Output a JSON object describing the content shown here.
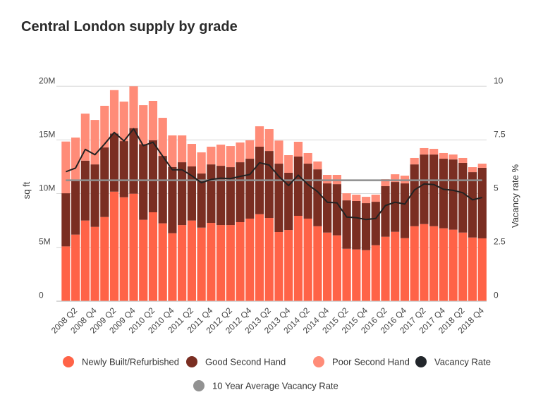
{
  "chart_data": {
    "type": "bar",
    "stacked": true,
    "title": "Central London supply by grade",
    "ylabel": "sq ft",
    "y2label": "Vacancy rate %",
    "ylim": [
      0,
      20000000
    ],
    "y2lim": [
      0,
      10
    ],
    "yticks": [
      "0",
      "5M",
      "10M",
      "15M",
      "20M"
    ],
    "y2ticks": [
      "0",
      "2.5",
      "5",
      "7.5",
      "10"
    ],
    "grid": true,
    "legend_placement": "bottom",
    "xtick_labels": [
      "2008 Q2",
      "2008 Q4",
      "2009 Q2",
      "2009 Q4",
      "2010 Q2",
      "2010 Q4",
      "2011 Q2",
      "2011 Q4",
      "2012 Q2",
      "2012 Q4",
      "2013 Q2",
      "2013 Q4",
      "2014 Q2",
      "2014 Q4",
      "2015 Q2",
      "2015 Q4",
      "2016 Q2",
      "2016 Q4",
      "2017 Q2",
      "2017 Q4",
      "2018 Q2",
      "2018 Q4"
    ],
    "units": "millions sq ft",
    "series": [
      {
        "name": "Newly Built/Refurbished",
        "color": "#ff6347",
        "axis": "left",
        "values": [
          5.08,
          6.18,
          7.49,
          6.9,
          7.82,
          10.18,
          9.66,
          9.99,
          7.56,
          8.26,
          7.23,
          6.31,
          7.07,
          7.49,
          6.83,
          7.27,
          7.07,
          7.07,
          7.34,
          7.67,
          8.08,
          7.73,
          6.42,
          6.61,
          7.93,
          7.67,
          6.96,
          6.37,
          6.11,
          4.86,
          4.8,
          4.73,
          5.19,
          5.98,
          6.44,
          5.85,
          6.96,
          7.16,
          6.96,
          6.77,
          6.64,
          6.37,
          5.91,
          5.83
        ]
      },
      {
        "name": "Good Second Hand",
        "color": "#7a2e22",
        "axis": "left",
        "values": [
          4.95,
          4.97,
          5.58,
          5.82,
          6.48,
          5.42,
          5.23,
          6.11,
          7.05,
          6.7,
          6.28,
          6.17,
          5.85,
          5.04,
          5.04,
          5.45,
          5.52,
          5.39,
          5.58,
          5.58,
          6.29,
          6.24,
          6.37,
          5.33,
          5.52,
          5.12,
          5.3,
          4.58,
          4.77,
          4.51,
          4.51,
          4.38,
          4.05,
          4.71,
          4.64,
          5.1,
          5.76,
          6.48,
          6.68,
          6.48,
          6.54,
          6.49,
          6.09,
          6.57
        ]
      },
      {
        "name": "Poor Second Hand",
        "color": "#ff8c78",
        "axis": "left",
        "values": [
          4.82,
          4.07,
          4.38,
          4.14,
          3.88,
          4.04,
          3.68,
          3.9,
          3.63,
          3.68,
          3.55,
          2.94,
          2.5,
          2.1,
          1.97,
          1.65,
          1.97,
          1.97,
          1.84,
          1.71,
          1.9,
          2.04,
          2.15,
          1.64,
          1.38,
          0.99,
          0.73,
          0.79,
          0.86,
          0.66,
          0.59,
          0.59,
          0.66,
          0.65,
          0.72,
          0.72,
          0.6,
          0.6,
          0.53,
          0.53,
          0.46,
          0.46,
          0.46,
          0.39
        ]
      },
      {
        "name": "Vacancy Rate",
        "type": "line",
        "color": "#222222",
        "axis": "right",
        "values": [
          6.02,
          6.19,
          7.06,
          6.81,
          7.31,
          7.85,
          7.45,
          8.02,
          7.23,
          7.39,
          6.74,
          6.11,
          6.11,
          5.83,
          5.51,
          5.66,
          5.72,
          5.7,
          5.8,
          5.89,
          6.44,
          6.33,
          5.8,
          5.37,
          5.86,
          5.42,
          5.09,
          4.6,
          4.57,
          3.91,
          3.88,
          3.79,
          3.84,
          4.44,
          4.6,
          4.51,
          5.17,
          5.45,
          5.42,
          5.2,
          5.15,
          5.04,
          4.71,
          4.82
        ]
      },
      {
        "name": "10 Year Average Vacancy Rate",
        "type": "line",
        "color": "#8e8e8e",
        "axis": "right",
        "value": 5.62
      }
    ],
    "legend": [
      {
        "label": "Newly Built/Refurbished",
        "color": "#ff6347"
      },
      {
        "label": "Good Second Hand",
        "color": "#7a2e22"
      },
      {
        "label": "Poor Second Hand",
        "color": "#ff8c78"
      },
      {
        "label": "Vacancy Rate",
        "color": "#22262b"
      },
      {
        "label": "10 Year Average Vacancy Rate",
        "color": "#929292"
      }
    ]
  }
}
